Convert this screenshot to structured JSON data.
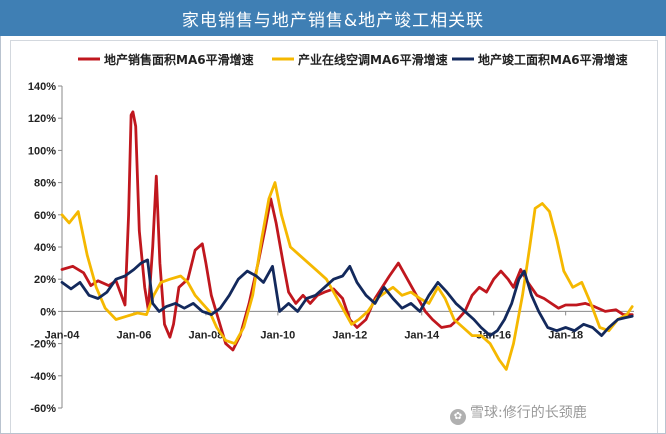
{
  "title": "家电销售与地产销售&地产竣工相关联",
  "watermark": {
    "brand": "雪球",
    "sep": ":",
    "author": "修行的长颈鹿"
  },
  "colors": {
    "header": "#3f7fb4"
  },
  "chart_data": {
    "type": "line",
    "title": "家电销售与地产销售&地产竣工相关联",
    "ylim": [
      -0.6,
      1.4
    ],
    "yticks": [
      "-60%",
      "-40%",
      "-20%",
      "0%",
      "20%",
      "40%",
      "60%",
      "80%",
      "100%",
      "120%",
      "140%"
    ],
    "xlim": [
      2004.0,
      2019.9
    ],
    "xticks": [
      {
        "x": 2004.0,
        "label": "Jan-04"
      },
      {
        "x": 2006.0,
        "label": "Jan-06"
      },
      {
        "x": 2008.0,
        "label": "Jan-08"
      },
      {
        "x": 2010.0,
        "label": "Jan-10"
      },
      {
        "x": 2012.0,
        "label": "Jan-12"
      },
      {
        "x": 2014.0,
        "label": "Jan-14"
      },
      {
        "x": 2016.0,
        "label": "Jan-16"
      },
      {
        "x": 2018.0,
        "label": "Jan-18"
      }
    ],
    "legend_position": "top",
    "grid": false,
    "series": [
      {
        "name": "地产销售面积MA6平滑增速",
        "color": "#c0171e",
        "points": [
          [
            2004.0,
            0.26
          ],
          [
            2004.3,
            0.28
          ],
          [
            2004.6,
            0.24
          ],
          [
            2004.8,
            0.16
          ],
          [
            2005.0,
            0.19
          ],
          [
            2005.3,
            0.16
          ],
          [
            2005.5,
            0.19
          ],
          [
            2005.75,
            0.04
          ],
          [
            2005.85,
            0.6
          ],
          [
            2005.92,
            1.22
          ],
          [
            2005.97,
            1.24
          ],
          [
            2006.05,
            1.15
          ],
          [
            2006.15,
            0.5
          ],
          [
            2006.3,
            0.15
          ],
          [
            2006.4,
            0.01
          ],
          [
            2006.52,
            0.4
          ],
          [
            2006.62,
            0.84
          ],
          [
            2006.72,
            0.3
          ],
          [
            2006.85,
            -0.08
          ],
          [
            2007.0,
            -0.16
          ],
          [
            2007.1,
            -0.08
          ],
          [
            2007.25,
            0.15
          ],
          [
            2007.5,
            0.2
          ],
          [
            2007.7,
            0.38
          ],
          [
            2007.9,
            0.42
          ],
          [
            2008.0,
            0.3
          ],
          [
            2008.15,
            0.1
          ],
          [
            2008.35,
            -0.05
          ],
          [
            2008.55,
            -0.2
          ],
          [
            2008.75,
            -0.24
          ],
          [
            2008.95,
            -0.15
          ],
          [
            2009.2,
            0.05
          ],
          [
            2009.45,
            0.3
          ],
          [
            2009.65,
            0.52
          ],
          [
            2009.8,
            0.7
          ],
          [
            2009.95,
            0.55
          ],
          [
            2010.15,
            0.3
          ],
          [
            2010.3,
            0.12
          ],
          [
            2010.5,
            0.05
          ],
          [
            2010.7,
            0.1
          ],
          [
            2010.9,
            0.05
          ],
          [
            2011.1,
            0.1
          ],
          [
            2011.3,
            0.12
          ],
          [
            2011.55,
            0.14
          ],
          [
            2011.8,
            0.08
          ],
          [
            2012.0,
            -0.05
          ],
          [
            2012.2,
            -0.1
          ],
          [
            2012.45,
            -0.05
          ],
          [
            2012.7,
            0.08
          ],
          [
            2012.9,
            0.15
          ],
          [
            2013.1,
            0.22
          ],
          [
            2013.35,
            0.3
          ],
          [
            2013.6,
            0.2
          ],
          [
            2013.85,
            0.1
          ],
          [
            2014.1,
            0.0
          ],
          [
            2014.3,
            -0.05
          ],
          [
            2014.55,
            -0.1
          ],
          [
            2014.8,
            -0.09
          ],
          [
            2015.0,
            -0.05
          ],
          [
            2015.2,
            0.0
          ],
          [
            2015.4,
            0.1
          ],
          [
            2015.6,
            0.15
          ],
          [
            2015.8,
            0.12
          ],
          [
            2016.0,
            0.2
          ],
          [
            2016.2,
            0.25
          ],
          [
            2016.4,
            0.2
          ],
          [
            2016.55,
            0.15
          ],
          [
            2016.75,
            0.26
          ],
          [
            2016.95,
            0.18
          ],
          [
            2017.2,
            0.1
          ],
          [
            2017.4,
            0.08
          ],
          [
            2017.6,
            0.05
          ],
          [
            2017.8,
            0.02
          ],
          [
            2018.0,
            0.04
          ],
          [
            2018.3,
            0.04
          ],
          [
            2018.55,
            0.05
          ],
          [
            2018.8,
            0.03
          ],
          [
            2019.1,
            0.0
          ],
          [
            2019.4,
            0.01
          ],
          [
            2019.6,
            -0.02
          ],
          [
            2019.85,
            -0.02
          ]
        ]
      },
      {
        "name": "产业在线空调MA6平滑增速",
        "color": "#f5b800",
        "points": [
          [
            2004.0,
            0.6
          ],
          [
            2004.2,
            0.55
          ],
          [
            2004.45,
            0.62
          ],
          [
            2004.7,
            0.35
          ],
          [
            2004.95,
            0.15
          ],
          [
            2005.2,
            0.02
          ],
          [
            2005.5,
            -0.05
          ],
          [
            2005.8,
            -0.03
          ],
          [
            2006.1,
            -0.01
          ],
          [
            2006.35,
            -0.02
          ],
          [
            2006.55,
            0.1
          ],
          [
            2006.75,
            0.18
          ],
          [
            2007.0,
            0.2
          ],
          [
            2007.3,
            0.22
          ],
          [
            2007.5,
            0.18
          ],
          [
            2007.7,
            0.1
          ],
          [
            2007.9,
            0.05
          ],
          [
            2008.1,
            0.0
          ],
          [
            2008.3,
            -0.1
          ],
          [
            2008.55,
            -0.18
          ],
          [
            2008.8,
            -0.2
          ],
          [
            2009.05,
            -0.1
          ],
          [
            2009.3,
            0.1
          ],
          [
            2009.55,
            0.45
          ],
          [
            2009.75,
            0.7
          ],
          [
            2009.92,
            0.8
          ],
          [
            2010.1,
            0.6
          ],
          [
            2010.35,
            0.4
          ],
          [
            2010.6,
            0.35
          ],
          [
            2010.85,
            0.3
          ],
          [
            2011.1,
            0.25
          ],
          [
            2011.35,
            0.2
          ],
          [
            2011.6,
            0.1
          ],
          [
            2011.85,
            0.0
          ],
          [
            2012.05,
            -0.08
          ],
          [
            2012.25,
            -0.05
          ],
          [
            2012.5,
            0.0
          ],
          [
            2012.75,
            0.08
          ],
          [
            2013.0,
            0.12
          ],
          [
            2013.2,
            0.15
          ],
          [
            2013.45,
            0.1
          ],
          [
            2013.7,
            0.12
          ],
          [
            2013.95,
            0.08
          ],
          [
            2014.2,
            0.05
          ],
          [
            2014.45,
            0.15
          ],
          [
            2014.65,
            0.08
          ],
          [
            2014.9,
            -0.05
          ],
          [
            2015.15,
            -0.1
          ],
          [
            2015.4,
            -0.15
          ],
          [
            2015.65,
            -0.15
          ],
          [
            2015.9,
            -0.2
          ],
          [
            2016.15,
            -0.3
          ],
          [
            2016.35,
            -0.36
          ],
          [
            2016.55,
            -0.2
          ],
          [
            2016.8,
            0.1
          ],
          [
            2017.0,
            0.4
          ],
          [
            2017.15,
            0.64
          ],
          [
            2017.35,
            0.67
          ],
          [
            2017.55,
            0.62
          ],
          [
            2017.75,
            0.45
          ],
          [
            2017.95,
            0.25
          ],
          [
            2018.2,
            0.15
          ],
          [
            2018.45,
            0.18
          ],
          [
            2018.7,
            0.05
          ],
          [
            2018.95,
            -0.1
          ],
          [
            2019.2,
            -0.12
          ],
          [
            2019.45,
            -0.05
          ],
          [
            2019.7,
            -0.02
          ],
          [
            2019.85,
            0.03
          ]
        ]
      },
      {
        "name": "地产竣工面积MA6平滑增速",
        "color": "#13295c",
        "points": [
          [
            2004.0,
            0.18
          ],
          [
            2004.25,
            0.14
          ],
          [
            2004.5,
            0.18
          ],
          [
            2004.75,
            0.1
          ],
          [
            2005.0,
            0.08
          ],
          [
            2005.25,
            0.12
          ],
          [
            2005.5,
            0.2
          ],
          [
            2005.75,
            0.22
          ],
          [
            2006.0,
            0.26
          ],
          [
            2006.2,
            0.3
          ],
          [
            2006.38,
            0.32
          ],
          [
            2006.52,
            0.05
          ],
          [
            2006.7,
            0.0
          ],
          [
            2006.9,
            0.03
          ],
          [
            2007.15,
            0.05
          ],
          [
            2007.4,
            0.02
          ],
          [
            2007.65,
            0.05
          ],
          [
            2007.9,
            0.0
          ],
          [
            2008.15,
            -0.02
          ],
          [
            2008.4,
            0.02
          ],
          [
            2008.65,
            0.1
          ],
          [
            2008.9,
            0.2
          ],
          [
            2009.15,
            0.25
          ],
          [
            2009.4,
            0.22
          ],
          [
            2009.6,
            0.18
          ],
          [
            2009.85,
            0.28
          ],
          [
            2010.05,
            0.0
          ],
          [
            2010.3,
            0.05
          ],
          [
            2010.55,
            0.0
          ],
          [
            2010.8,
            0.08
          ],
          [
            2011.05,
            0.1
          ],
          [
            2011.3,
            0.15
          ],
          [
            2011.55,
            0.2
          ],
          [
            2011.8,
            0.22
          ],
          [
            2012.0,
            0.28
          ],
          [
            2012.2,
            0.18
          ],
          [
            2012.45,
            0.1
          ],
          [
            2012.7,
            0.05
          ],
          [
            2012.95,
            0.15
          ],
          [
            2013.2,
            0.08
          ],
          [
            2013.45,
            0.02
          ],
          [
            2013.7,
            0.05
          ],
          [
            2013.95,
            0.0
          ],
          [
            2014.2,
            0.1
          ],
          [
            2014.45,
            0.18
          ],
          [
            2014.7,
            0.12
          ],
          [
            2014.95,
            0.05
          ],
          [
            2015.2,
            0.0
          ],
          [
            2015.45,
            -0.05
          ],
          [
            2015.65,
            -0.1
          ],
          [
            2015.9,
            -0.15
          ],
          [
            2016.1,
            -0.12
          ],
          [
            2016.3,
            -0.05
          ],
          [
            2016.5,
            0.05
          ],
          [
            2016.7,
            0.2
          ],
          [
            2016.85,
            0.25
          ],
          [
            2017.05,
            0.1
          ],
          [
            2017.25,
            0.0
          ],
          [
            2017.5,
            -0.1
          ],
          [
            2017.75,
            -0.12
          ],
          [
            2018.0,
            -0.1
          ],
          [
            2018.25,
            -0.12
          ],
          [
            2018.5,
            -0.08
          ],
          [
            2018.75,
            -0.1
          ],
          [
            2019.0,
            -0.15
          ],
          [
            2019.2,
            -0.1
          ],
          [
            2019.45,
            -0.05
          ],
          [
            2019.65,
            -0.04
          ],
          [
            2019.85,
            -0.03
          ]
        ]
      }
    ]
  }
}
